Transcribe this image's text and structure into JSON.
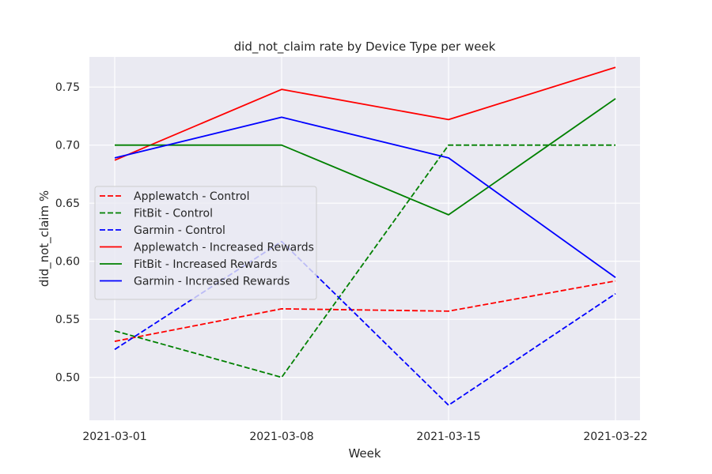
{
  "chart_data": {
    "type": "line",
    "title": "did_not_claim rate by Device Type per week",
    "xlabel": "Week",
    "ylabel": "did_not_claim %",
    "categories": [
      "2021-03-01",
      "2021-03-08",
      "2021-03-15",
      "2021-03-22"
    ],
    "ylim": [
      0.463,
      0.776
    ],
    "yticks": [
      0.5,
      0.55,
      0.6,
      0.65,
      0.7,
      0.75
    ],
    "ytick_labels": [
      "0.50",
      "0.55",
      "0.60",
      "0.65",
      "0.70",
      "0.75"
    ],
    "grid": true,
    "background": "#eaeaf2",
    "legend_position": "center-left",
    "series": [
      {
        "name": "Applewatch - Control",
        "color": "#ff0000",
        "dashed": true,
        "values": [
          0.531,
          0.559,
          0.557,
          0.583
        ]
      },
      {
        "name": "FitBit - Control",
        "color": "#008000",
        "dashed": true,
        "values": [
          0.54,
          0.5,
          0.7,
          0.7
        ]
      },
      {
        "name": "Garmin - Control",
        "color": "#0000ff",
        "dashed": true,
        "values": [
          0.524,
          0.617,
          0.476,
          0.572
        ]
      },
      {
        "name": "Applewatch - Increased Rewards",
        "color": "#ff0000",
        "dashed": false,
        "values": [
          0.687,
          0.748,
          0.722,
          0.767
        ]
      },
      {
        "name": "FitBit - Increased Rewards",
        "color": "#008000",
        "dashed": false,
        "values": [
          0.7,
          0.7,
          0.64,
          0.74
        ]
      },
      {
        "name": "Garmin - Increased Rewards",
        "color": "#0000ff",
        "dashed": false,
        "values": [
          0.689,
          0.724,
          0.689,
          0.586
        ]
      }
    ]
  }
}
